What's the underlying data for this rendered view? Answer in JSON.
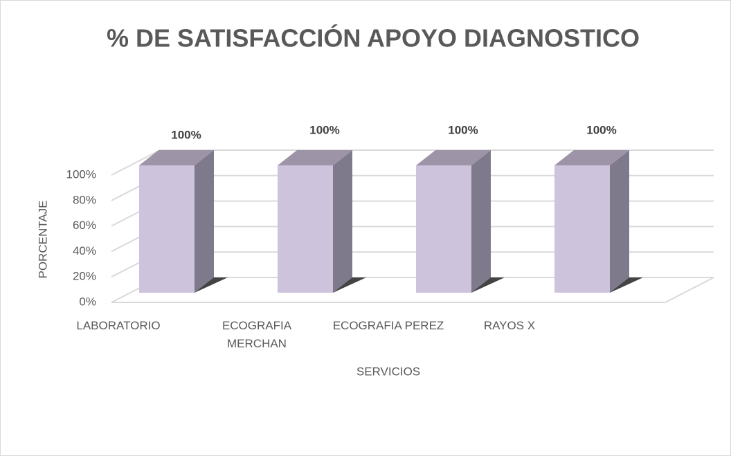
{
  "chart_data": {
    "type": "bar3d",
    "title": "% DE SATISFACCIÓN APOYO DIAGNOSTICO",
    "x_label": "SERVICIOS",
    "y_label": "PORCENTAJE",
    "categories": [
      "LABORATORIO",
      "ECOGRAFIA MERCHAN",
      "ECOGRAFIA PEREZ",
      "RAYOS X"
    ],
    "values": [
      100,
      100,
      100,
      100
    ],
    "value_labels": [
      "100%",
      "100%",
      "100%",
      "100%"
    ],
    "color": "#cdc3dc",
    "ylim": [
      0,
      100
    ],
    "yticks": [
      {
        "value": 0,
        "label": "0%"
      },
      {
        "value": 20,
        "label": "20%"
      },
      {
        "value": 40,
        "label": "40%"
      },
      {
        "value": 60,
        "label": "60%"
      },
      {
        "value": 80,
        "label": "80%"
      },
      {
        "value": 100,
        "label": "100%"
      }
    ],
    "grid": true
  }
}
